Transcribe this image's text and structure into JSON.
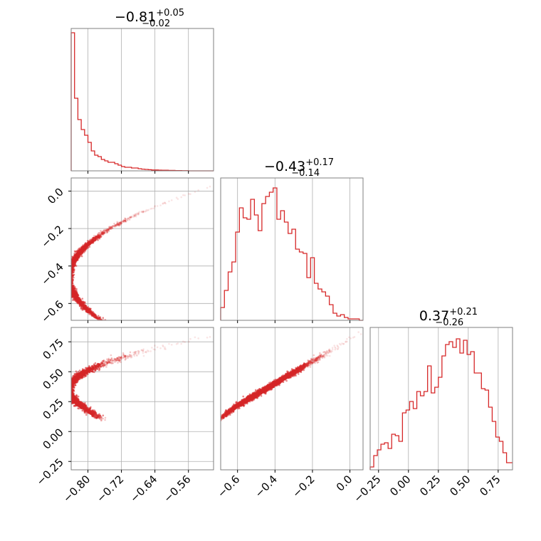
{
  "chart_data": {
    "type": "corner",
    "color": "#d62728",
    "grid": true,
    "panels": [
      {
        "id": "hist-0",
        "type": "histogram",
        "title": {
          "value": "−0.81",
          "plus": "+0.05",
          "minus": "−0.02"
        },
        "xlim": [
          -0.84,
          -0.5
        ],
        "xticks": [
          -0.8,
          -0.72,
          -0.64,
          -0.56
        ],
        "ylim": [
          0,
          1.0
        ],
        "bin_edges": [
          -0.84,
          -0.832,
          -0.824,
          -0.816,
          -0.808,
          -0.8,
          -0.792,
          -0.784,
          -0.776,
          -0.768,
          -0.76,
          -0.752,
          -0.744,
          -0.736,
          -0.728,
          -0.72,
          -0.712,
          -0.704,
          -0.696,
          -0.688,
          -0.68,
          -0.672,
          -0.664,
          -0.656,
          -0.648,
          -0.64,
          -0.632,
          -0.624,
          -0.616,
          -0.608,
          -0.6,
          -0.592,
          -0.584,
          -0.576,
          -0.568,
          -0.56,
          -0.5
        ],
        "counts": [
          0.97,
          0.51,
          0.36,
          0.29,
          0.25,
          0.2,
          0.14,
          0.11,
          0.1,
          0.08,
          0.07,
          0.06,
          0.06,
          0.05,
          0.04,
          0.03,
          0.025,
          0.025,
          0.02,
          0.02,
          0.015,
          0.012,
          0.01,
          0.008,
          0.006,
          0.006,
          0.005,
          0.004,
          0.004,
          0.003,
          0.003,
          0.002,
          0.002,
          0.001,
          0.001,
          0.0
        ]
      },
      {
        "id": "scatter-1-0",
        "type": "density",
        "x_param": 0,
        "y_param": 1,
        "xlim": [
          -0.84,
          -0.5
        ],
        "ylim": [
          -0.69,
          0.07
        ],
        "xticks": [
          -0.8,
          -0.72,
          -0.64,
          -0.56
        ],
        "yticks": [
          0.0,
          -0.2,
          -0.4,
          -0.6
        ],
        "ytick_labels": [
          "0.0",
          "−0.2",
          "−0.4",
          "−0.6"
        ]
      },
      {
        "id": "hist-1",
        "type": "histogram",
        "title": {
          "value": "−0.43",
          "plus": "+0.17",
          "minus": "−0.14"
        },
        "xlim": [
          -0.69,
          0.07
        ],
        "xticks": [
          -0.6,
          -0.4,
          -0.2,
          0.0
        ],
        "ylim": [
          0,
          1.0
        ],
        "bin_edges": [
          -0.69,
          -0.67,
          -0.65,
          -0.63,
          -0.61,
          -0.59,
          -0.57,
          -0.55,
          -0.53,
          -0.51,
          -0.49,
          -0.47,
          -0.45,
          -0.43,
          -0.41,
          -0.39,
          -0.37,
          -0.35,
          -0.33,
          -0.31,
          -0.29,
          -0.27,
          -0.25,
          -0.23,
          -0.21,
          -0.19,
          -0.17,
          -0.15,
          -0.13,
          -0.11,
          -0.09,
          -0.07,
          -0.05,
          -0.03,
          -0.01,
          0.01,
          0.03,
          0.05,
          0.07
        ],
        "counts": [
          0.09,
          0.21,
          0.34,
          0.41,
          0.62,
          0.79,
          0.72,
          0.71,
          0.85,
          0.74,
          0.63,
          0.82,
          0.87,
          0.9,
          0.93,
          0.71,
          0.77,
          0.69,
          0.61,
          0.64,
          0.5,
          0.48,
          0.47,
          0.3,
          0.44,
          0.26,
          0.22,
          0.2,
          0.17,
          0.11,
          0.05,
          0.03,
          0.04,
          0.02,
          0.01,
          0.01,
          0.01,
          0.0
        ]
      },
      {
        "id": "scatter-2-0",
        "type": "density",
        "x_param": 0,
        "y_param": 2,
        "xlim": [
          -0.84,
          -0.5
        ],
        "ylim": [
          -0.32,
          0.87
        ],
        "xticks": [
          -0.8,
          -0.72,
          -0.64,
          -0.56
        ],
        "xtick_labels": [
          "−0.80",
          "−0.72",
          "−0.64",
          "−0.56"
        ],
        "yticks": [
          0.75,
          0.5,
          0.25,
          0.0,
          -0.25
        ],
        "ytick_labels": [
          "0.75",
          "0.50",
          "0.25",
          "0.00",
          "−0.25"
        ]
      },
      {
        "id": "scatter-2-1",
        "type": "density",
        "x_param": 1,
        "y_param": 2,
        "xlim": [
          -0.69,
          0.07
        ],
        "ylim": [
          -0.32,
          0.87
        ],
        "xticks": [
          -0.6,
          -0.4,
          -0.2,
          0.0
        ],
        "xtick_labels": [
          "−0.6",
          "−0.4",
          "−0.2",
          "0.0"
        ]
      },
      {
        "id": "hist-2",
        "type": "histogram",
        "title": {
          "value": "0.37",
          "plus": "+0.21",
          "minus": "−0.26"
        },
        "xlim": [
          -0.32,
          0.87
        ],
        "xticks": [
          -0.25,
          0.0,
          0.25,
          0.5,
          0.75
        ],
        "xtick_labels": [
          "−0.25",
          "0.00",
          "0.25",
          "0.50",
          "0.75"
        ],
        "ylim": [
          0,
          1.0
        ],
        "bin_edges": [
          -0.32,
          -0.29,
          -0.26,
          -0.23,
          -0.2,
          -0.17,
          -0.14,
          -0.11,
          -0.08,
          -0.05,
          -0.02,
          0.01,
          0.04,
          0.07,
          0.1,
          0.13,
          0.16,
          0.19,
          0.22,
          0.25,
          0.28,
          0.31,
          0.34,
          0.37,
          0.4,
          0.43,
          0.46,
          0.49,
          0.52,
          0.55,
          0.58,
          0.61,
          0.64,
          0.67,
          0.7,
          0.73,
          0.76,
          0.79,
          0.82,
          0.87
        ],
        "counts": [
          0.02,
          0.1,
          0.14,
          0.18,
          0.19,
          0.15,
          0.25,
          0.24,
          0.2,
          0.4,
          0.42,
          0.48,
          0.43,
          0.55,
          0.52,
          0.55,
          0.73,
          0.54,
          0.58,
          0.65,
          0.8,
          0.88,
          0.9,
          0.86,
          0.92,
          0.82,
          0.91,
          0.81,
          0.83,
          0.68,
          0.68,
          0.57,
          0.56,
          0.44,
          0.34,
          0.23,
          0.2,
          0.12,
          0.05
        ]
      }
    ]
  }
}
